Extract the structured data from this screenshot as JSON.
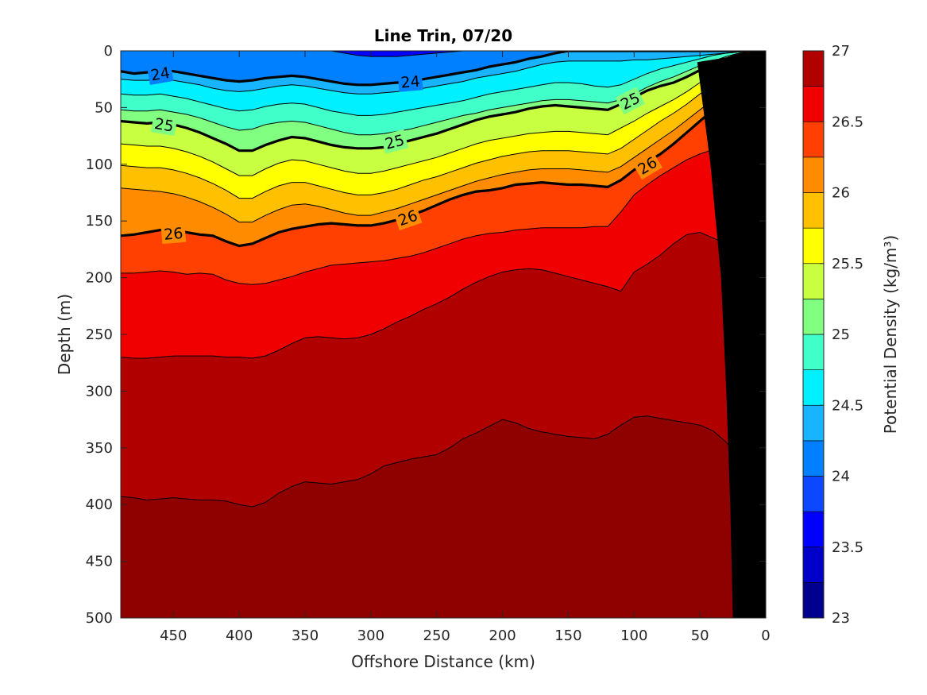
{
  "chart_data": {
    "type": "contour",
    "title": "Line Trin, 07/20",
    "xlabel": "Offshore Distance (km)",
    "ylabel": "Depth (m)",
    "colorbar_label": "Potential Density (kg/m³)",
    "xlim": [
      490,
      0
    ],
    "ylim": [
      500,
      0
    ],
    "x_ticks": [
      450,
      400,
      350,
      300,
      250,
      200,
      150,
      100,
      50,
      0
    ],
    "y_ticks": [
      0,
      50,
      100,
      150,
      200,
      250,
      300,
      350,
      400,
      450,
      500
    ],
    "colorbar_ticks": [
      23,
      23.5,
      24,
      24.5,
      25,
      25.5,
      26,
      26.5,
      27
    ],
    "levels": [
      23,
      23.25,
      23.5,
      23.75,
      24,
      24.25,
      24.5,
      24.75,
      25,
      25.25,
      25.5,
      25.75,
      26,
      26.25,
      26.5,
      26.75,
      27
    ],
    "colors": [
      "#00008f",
      "#0000c8",
      "#0000ff",
      "#0c48ff",
      "#0080ff",
      "#18b4ff",
      "#00f0ff",
      "#40ffc8",
      "#80ff80",
      "#c8ff40",
      "#ffff00",
      "#ffc000",
      "#ff8c00",
      "#ff4000",
      "#f00000",
      "#b00000",
      "#8f0000"
    ],
    "contour_x": [
      490,
      480,
      470,
      460,
      450,
      440,
      430,
      420,
      410,
      400,
      390,
      380,
      370,
      360,
      350,
      340,
      330,
      320,
      310,
      300,
      290,
      280,
      270,
      260,
      250,
      240,
      230,
      220,
      210,
      200,
      190,
      180,
      170,
      160,
      150,
      140,
      130,
      120,
      110,
      100,
      90,
      80,
      70,
      60,
      50,
      40,
      30,
      20,
      10,
      0
    ],
    "isopycnals": [
      {
        "level": 23.75,
        "depths": [
          0,
          0,
          0,
          0,
          0,
          0,
          0,
          0,
          0,
          0,
          0,
          0,
          0,
          0,
          0,
          0,
          0,
          2,
          4,
          5,
          5,
          5,
          4,
          3,
          2,
          1,
          0,
          0,
          0,
          0,
          0,
          0,
          0,
          0,
          0,
          0,
          0,
          0,
          0,
          0,
          0,
          0,
          0,
          0,
          0,
          0,
          0,
          0,
          0,
          0
        ]
      },
      {
        "level": 24,
        "depths": [
          18,
          20,
          19,
          17,
          18,
          20,
          22,
          24,
          26,
          27,
          26,
          24,
          23,
          22,
          23,
          25,
          27,
          29,
          30,
          30,
          29,
          28,
          27,
          25,
          23,
          21,
          19,
          17,
          14,
          12,
          10,
          7,
          5,
          2,
          0,
          0,
          0,
          0,
          0,
          0,
          0,
          0,
          0,
          0,
          0,
          0,
          0,
          0,
          0,
          0
        ]
      },
      {
        "level": 24.25,
        "depths": [
          25,
          26,
          26,
          25,
          26,
          28,
          30,
          33,
          35,
          36,
          35,
          33,
          31,
          30,
          31,
          33,
          35,
          37,
          38,
          38,
          37,
          36,
          34,
          33,
          31,
          29,
          27,
          24,
          22,
          20,
          18,
          15,
          12,
          10,
          9,
          9,
          9,
          9,
          9,
          8,
          8,
          7,
          6,
          5,
          4,
          3,
          2,
          1,
          0,
          0
        ]
      },
      {
        "level": 24.5,
        "depths": [
          38,
          39,
          39,
          38,
          40,
          42,
          45,
          48,
          51,
          53,
          52,
          49,
          47,
          46,
          47,
          50,
          53,
          55,
          57,
          57,
          56,
          54,
          52,
          50,
          48,
          46,
          44,
          41,
          38,
          36,
          34,
          32,
          30,
          28,
          28,
          29,
          31,
          32,
          30,
          25,
          20,
          16,
          13,
          10,
          7,
          4,
          2,
          1,
          0,
          0
        ]
      },
      {
        "level": 24.75,
        "depths": [
          52,
          53,
          53,
          52,
          54,
          56,
          59,
          63,
          67,
          70,
          69,
          65,
          63,
          62,
          63,
          66,
          69,
          72,
          74,
          74,
          73,
          71,
          69,
          66,
          63,
          60,
          57,
          55,
          52,
          50,
          48,
          46,
          44,
          43,
          43,
          44,
          45,
          46,
          43,
          38,
          32,
          27,
          23,
          18,
          13,
          9,
          5,
          2,
          0,
          0
        ]
      },
      {
        "level": 25,
        "depths": [
          62,
          63,
          64,
          63,
          65,
          68,
          72,
          77,
          82,
          88,
          88,
          83,
          79,
          76,
          77,
          80,
          83,
          85,
          86,
          86,
          85,
          82,
          79,
          76,
          73,
          69,
          65,
          61,
          58,
          56,
          54,
          51,
          49,
          48,
          49,
          50,
          51,
          52,
          47,
          41,
          35,
          31,
          28,
          23,
          17,
          12,
          7,
          3,
          1,
          0
        ]
      },
      {
        "level": 25.25,
        "depths": [
          82,
          83,
          84,
          84,
          86,
          89,
          93,
          98,
          104,
          110,
          110,
          104,
          99,
          96,
          97,
          100,
          103,
          106,
          108,
          108,
          106,
          103,
          100,
          97,
          94,
          90,
          86,
          82,
          79,
          77,
          75,
          73,
          72,
          71,
          71,
          72,
          73,
          74,
          68,
          62,
          55,
          49,
          43,
          36,
          28,
          21,
          14,
          8,
          4,
          2
        ]
      },
      {
        "level": 25.5,
        "depths": [
          101,
          102,
          103,
          103,
          105,
          108,
          112,
          117,
          123,
          130,
          130,
          124,
          119,
          116,
          116,
          119,
          122,
          125,
          127,
          127,
          125,
          122,
          118,
          114,
          111,
          107,
          103,
          99,
          96,
          93,
          91,
          89,
          88,
          88,
          88,
          89,
          90,
          91,
          86,
          78,
          70,
          62,
          55,
          47,
          38,
          30,
          22,
          15,
          9,
          5
        ]
      },
      {
        "level": 25.75,
        "depths": [
          121,
          122,
          123,
          124,
          126,
          129,
          133,
          138,
          144,
          151,
          151,
          145,
          140,
          136,
          135,
          137,
          140,
          143,
          145,
          145,
          142,
          139,
          135,
          131,
          127,
          123,
          119,
          115,
          112,
          109,
          107,
          105,
          104,
          104,
          104,
          105,
          106,
          107,
          102,
          94,
          86,
          78,
          70,
          61,
          52,
          43,
          34,
          26,
          18,
          12
        ]
      },
      {
        "level": 26,
        "depths": [
          163,
          162,
          160,
          158,
          157,
          160,
          162,
          163,
          168,
          172,
          170,
          165,
          160,
          157,
          155,
          153,
          152,
          153,
          154,
          154,
          152,
          149,
          145,
          141,
          136,
          131,
          127,
          124,
          123,
          121,
          118,
          117,
          116,
          117,
          118,
          118,
          119,
          120,
          114,
          105,
          98,
          91,
          82,
          72,
          62,
          52,
          46,
          45,
          45,
          45
        ]
      },
      {
        "level": 26.25,
        "depths": [
          196,
          196,
          195,
          194,
          195,
          197,
          196,
          197,
          202,
          205,
          206,
          205,
          202,
          199,
          195,
          192,
          189,
          188,
          187,
          186,
          185,
          183,
          181,
          178,
          174,
          170,
          166,
          163,
          161,
          160,
          158,
          157,
          156,
          156,
          156,
          156,
          155,
          155,
          142,
          127,
          118,
          110,
          103,
          96,
          91,
          87,
          86,
          85,
          84,
          84
        ]
      },
      {
        "level": 26.5,
        "depths": [
          270,
          271,
          271,
          270,
          269,
          269,
          269,
          269,
          270,
          270,
          271,
          269,
          264,
          258,
          253,
          252,
          253,
          254,
          253,
          250,
          245,
          239,
          234,
          228,
          223,
          217,
          210,
          204,
          199,
          195,
          193,
          192,
          193,
          196,
          199,
          202,
          205,
          208,
          212,
          195,
          188,
          180,
          170,
          162,
          160,
          165,
          170,
          175,
          180,
          185
        ]
      },
      {
        "level": 26.75,
        "depths": [
          393,
          394,
          396,
          395,
          394,
          395,
          396,
          396,
          397,
          400,
          402,
          398,
          390,
          384,
          380,
          381,
          382,
          380,
          378,
          373,
          366,
          363,
          360,
          358,
          356,
          350,
          342,
          337,
          331,
          325,
          328,
          333,
          336,
          338,
          340,
          341,
          342,
          338,
          330,
          323,
          322,
          324,
          326,
          328,
          330,
          335,
          345,
          360,
          370,
          380
        ]
      }
    ],
    "contour_labels": [
      {
        "text": "24",
        "x": 460,
        "depth": 20
      },
      {
        "text": "24",
        "x": 270,
        "depth": 27
      },
      {
        "text": "25",
        "x": 103,
        "depth": 44
      },
      {
        "text": "25",
        "x": 457,
        "depth": 65
      },
      {
        "text": "25",
        "x": 282,
        "depth": 80
      },
      {
        "text": "26",
        "x": 90,
        "depth": 101
      },
      {
        "text": "26",
        "x": 272,
        "depth": 147
      },
      {
        "text": "26",
        "x": 450,
        "depth": 161
      }
    ],
    "bottom_topography": [
      [
        0,
        0
      ],
      [
        0,
        500
      ],
      [
        25,
        500
      ],
      [
        27,
        400
      ],
      [
        30,
        300
      ],
      [
        34,
        200
      ],
      [
        42,
        100
      ],
      [
        52,
        10
      ],
      [
        0,
        0
      ]
    ],
    "grid": false
  }
}
